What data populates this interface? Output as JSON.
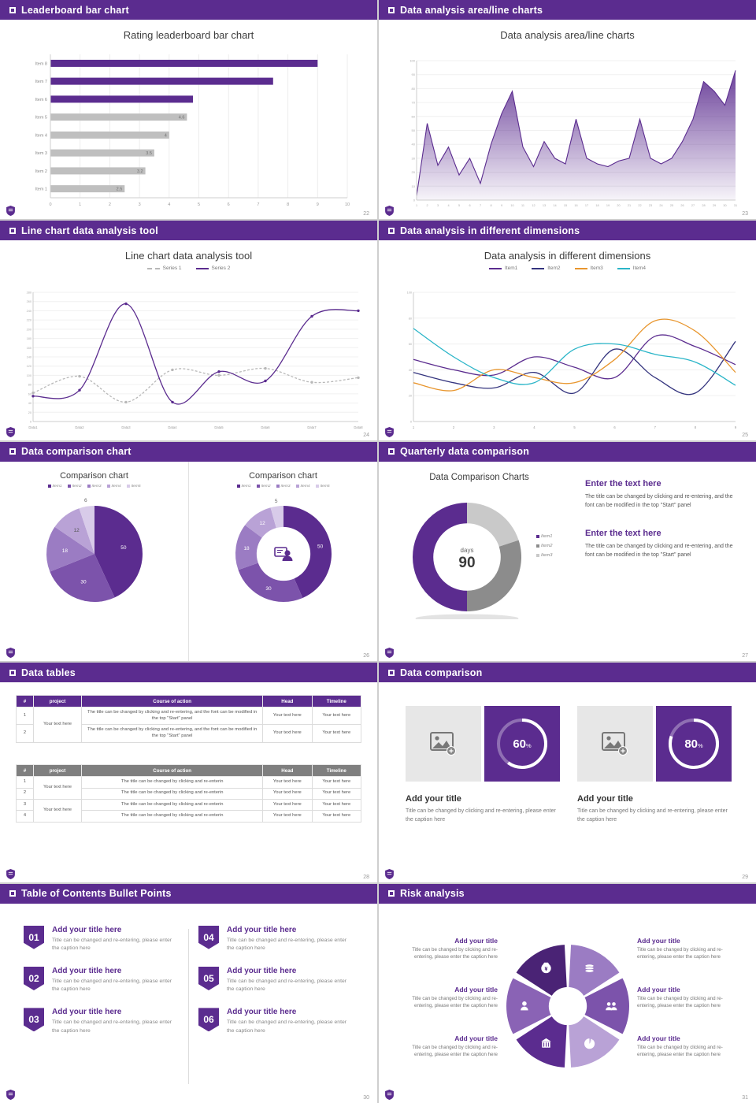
{
  "theme": {
    "purple": "#5b2c8f",
    "purple_mid": "#7c53ab",
    "purple_light": "#9b7cc3",
    "purple_lighter": "#b9a2d6",
    "purple_pale": "#d8cbe9",
    "gray_bar": "#bfbfbf",
    "gray_mid": "#8c8c8c",
    "gray_light": "#c9c9c9",
    "orange": "#e8962e",
    "teal": "#2ab5c8",
    "navy": "#34347e"
  },
  "slides": [
    {
      "header": "Leaderboard bar chart",
      "page": "22",
      "title": "Rating leaderboard bar chart",
      "chart_data": {
        "type": "barh",
        "title": "Rating leaderboard bar chart",
        "xlim": [
          0,
          10
        ],
        "xticks": [
          0,
          1,
          2,
          3,
          4,
          5,
          6,
          7,
          8,
          9,
          10
        ],
        "items": [
          {
            "label": "Item 1",
            "value": 2.5,
            "color": "#bfbfbf",
            "value_label": "2.5"
          },
          {
            "label": "Item 2",
            "value": 3.2,
            "color": "#bfbfbf",
            "value_label": "3.2"
          },
          {
            "label": "Item 3",
            "value": 3.5,
            "color": "#bfbfbf",
            "value_label": "3.5"
          },
          {
            "label": "Item 4",
            "value": 4.0,
            "color": "#bfbfbf",
            "value_label": "4"
          },
          {
            "label": "Item 5",
            "value": 4.6,
            "color": "#bfbfbf",
            "value_label": "4.6"
          },
          {
            "label": "Item 6",
            "value": 4.8,
            "color": "#5b2c8f",
            "value_label": ""
          },
          {
            "label": "Item 7",
            "value": 7.5,
            "color": "#5b2c8f",
            "value_label": ""
          },
          {
            "label": "Item 8",
            "value": 9.0,
            "color": "#5b2c8f",
            "value_label": ""
          }
        ]
      }
    },
    {
      "header": "Data analysis area/line charts",
      "page": "23",
      "title": "Data analysis area/line charts",
      "chart_data": {
        "type": "area",
        "color": "#5b2c8f",
        "ylim": [
          0,
          100
        ],
        "ystep": 10,
        "x": [
          1,
          2,
          3,
          4,
          5,
          6,
          7,
          8,
          9,
          10,
          11,
          12,
          13,
          14,
          15,
          16,
          17,
          18,
          19,
          20,
          21,
          22,
          23,
          24,
          25,
          26,
          27,
          28,
          29,
          30,
          31
        ],
        "values": [
          3,
          55,
          25,
          38,
          18,
          30,
          12,
          40,
          62,
          78,
          38,
          24,
          42,
          30,
          26,
          58,
          30,
          26,
          24,
          28,
          30,
          58,
          30,
          26,
          30,
          42,
          58,
          85,
          78,
          68,
          93
        ]
      }
    },
    {
      "header": "Line chart data analysis tool",
      "page": "24",
      "title": "Line chart data analysis tool",
      "chart_data": {
        "type": "line",
        "xlabels": [
          "Data1",
          "Data2",
          "Data3",
          "Data4",
          "Data5",
          "Data6",
          "Data7",
          "Data8"
        ],
        "ylim": [
          0,
          280
        ],
        "ystep": 20,
        "series": [
          {
            "name": "Series 1",
            "color": "#b8b8b8",
            "dash": true,
            "marker": true,
            "values": [
              62,
              98,
              42,
              112,
              100,
              115,
              85,
              95
            ]
          },
          {
            "name": "Series 2",
            "color": "#5b2c8f",
            "dash": false,
            "marker": true,
            "values": [
              55,
              68,
              255,
              42,
              108,
              88,
              228,
              240
            ]
          }
        ]
      }
    },
    {
      "header": "Data analysis in different dimensions",
      "page": "25",
      "title": "Data analysis in different dimensions",
      "chart_data": {
        "type": "line",
        "xlabels": [
          1,
          2,
          3,
          4,
          5,
          6,
          7,
          8,
          9
        ],
        "ylim": [
          0,
          100
        ],
        "ystep": 20,
        "series": [
          {
            "name": "Item1",
            "color": "#5b2c8f",
            "dash": false,
            "marker": false,
            "values": [
              48,
              40,
              36,
              50,
              42,
              34,
              66,
              58,
              44
            ]
          },
          {
            "name": "Item2",
            "color": "#34347e",
            "dash": false,
            "marker": false,
            "values": [
              38,
              30,
              26,
              38,
              22,
              56,
              34,
              22,
              62
            ]
          },
          {
            "name": "Item3",
            "color": "#e8962e",
            "dash": false,
            "marker": false,
            "values": [
              30,
              24,
              40,
              34,
              30,
              48,
              78,
              70,
              38
            ]
          },
          {
            "name": "Item4",
            "color": "#2ab5c8",
            "dash": false,
            "marker": false,
            "values": [
              72,
              50,
              34,
              30,
              56,
              60,
              52,
              46,
              28
            ]
          }
        ]
      }
    },
    {
      "header": "Data comparison chart",
      "page": "26",
      "panels": [
        {
          "title": "Comparison chart",
          "legend": [
            "Item1",
            "Item2",
            "Item3",
            "Item4",
            "Item5"
          ],
          "chart_data": {
            "type": "pie",
            "values": [
              50,
              30,
              18,
              12,
              6
            ],
            "labels": [
              "50",
              "30",
              "18",
              "12",
              "6"
            ],
            "colors": [
              "#5b2c8f",
              "#7c53ab",
              "#9b7cc3",
              "#b9a2d6",
              "#d8cbe9"
            ],
            "label_colors": [
              "#ffffff",
              "#ffffff",
              "#ffffff",
              "#555555",
              "#555555"
            ]
          }
        },
        {
          "title": "Comparison chart",
          "legend": [
            "Item1",
            "Item2",
            "Item3",
            "Item4",
            "Item5"
          ],
          "chart_data": {
            "type": "donut",
            "hole": 0.56,
            "center_icon": "presenter",
            "values": [
              50,
              30,
              18,
              12,
              5
            ],
            "labels": [
              "50",
              "30",
              "18",
              "12",
              "5"
            ],
            "colors": [
              "#5b2c8f",
              "#7c53ab",
              "#9b7cc3",
              "#b9a2d6",
              "#d8cbe9"
            ],
            "label_colors": [
              "#ffffff",
              "#ffffff",
              "#ffffff",
              "#ffffff",
              "#555555"
            ]
          }
        }
      ]
    },
    {
      "header": "Quarterly data comparison",
      "page": "27",
      "title": "Data Comparison Charts",
      "chart_data": {
        "type": "donut",
        "hole": 0.62,
        "shadow": true,
        "center_label": "days",
        "center_value": "90",
        "slices": [
          {
            "name": "Item3",
            "value": 20,
            "color": "#c9c9c9"
          },
          {
            "name": "Item2",
            "value": 30,
            "color": "#8c8c8c"
          },
          {
            "name": "Item1",
            "value": 50,
            "color": "#5b2c8f"
          }
        ]
      },
      "legend": [
        "Item1",
        "Item2",
        "Item3"
      ],
      "legend_colors": [
        "#5b2c8f",
        "#8c8c8c",
        "#c9c9c9"
      ],
      "blocks": [
        {
          "heading": "Enter the text here",
          "body": "The title can be changed by clicking and re-entering, and the font can be modified in the top \"Start\" panel"
        },
        {
          "heading": "Enter the text here",
          "body": "The title can be changed by clicking and re-entering, and the font can be modified in the top \"Start\" panel"
        }
      ]
    },
    {
      "header": "Data tables",
      "page": "28",
      "table1": {
        "header_bg": "#5b2c8f",
        "headers": [
          "#",
          "project",
          "Course of action",
          "Head",
          "Timeline"
        ],
        "groups": [
          {
            "project": "Your text here",
            "rows": [
              {
                "num": "1",
                "course": "The title can be changed by clicking and re-entering, and the font can be modified in the top \"Start\" panel",
                "head": "Your text here",
                "timeline": "Your text here"
              },
              {
                "num": "2",
                "course": "The title can be changed by clicking and re-entering, and the font can be modified in the top \"Start\" panel",
                "head": "Your text here",
                "timeline": "Your text here"
              }
            ]
          }
        ]
      },
      "table2": {
        "header_bg": "#7f7f7f",
        "headers": [
          "#",
          "project",
          "Course of action",
          "Head",
          "Timeline"
        ],
        "groups": [
          {
            "project": "Your text here",
            "rows": [
              {
                "num": "1",
                "course": "The title can be changed by clicking and re-enterin",
                "head": "Your text here",
                "timeline": "Your text here"
              },
              {
                "num": "2",
                "course": "The title can be changed by clicking and re-enterin",
                "head": "Your text here",
                "timeline": "Your text here"
              }
            ]
          },
          {
            "project": "Your text here",
            "rows": [
              {
                "num": "3",
                "course": "The title can be changed by clicking and re-enterin",
                "head": "Your text here",
                "timeline": "Your text here"
              },
              {
                "num": "4",
                "course": "The title can be changed by clicking and re-enterin",
                "head": "Your text here",
                "timeline": "Your text here"
              }
            ]
          }
        ]
      }
    },
    {
      "header": "Data comparison",
      "page": "29",
      "cards": [
        {
          "percent": 60,
          "title": "Add your title",
          "caption": "Title can be changed by clicking and re-entering, please enter the caption here"
        },
        {
          "percent": 80,
          "title": "Add your title",
          "caption": "Title can be changed by clicking and re-entering, please enter the caption here"
        }
      ]
    },
    {
      "header": "Table of Contents Bullet Points",
      "page": "30",
      "items": [
        {
          "num": "01",
          "title": "Add your title here",
          "caption": "Title can be changed and re-entering, please enter the caption here"
        },
        {
          "num": "02",
          "title": "Add your title here",
          "caption": "Title can be changed and re-entering, please enter the caption here"
        },
        {
          "num": "03",
          "title": "Add your title here",
          "caption": "Title can be changed and re-entering, please enter the caption here"
        },
        {
          "num": "04",
          "title": "Add your title here",
          "caption": "Title can be changed and re-entering, please enter the caption here"
        },
        {
          "num": "05",
          "title": "Add your title here",
          "caption": "Title can be changed and re-entering, please enter the caption here"
        },
        {
          "num": "06",
          "title": "Add your title here",
          "caption": "Title can be changed and re-entering, please enter the caption here"
        }
      ]
    },
    {
      "header": "Risk analysis",
      "page": "31",
      "wheel": {
        "segments": [
          {
            "icon": "coins",
            "color": "#9b7cc3"
          },
          {
            "icon": "people",
            "color": "#7c53ab"
          },
          {
            "icon": "pie",
            "color": "#b9a2d6"
          },
          {
            "icon": "building",
            "color": "#5b2c8f"
          },
          {
            "icon": "person",
            "color": "#8a63b5"
          },
          {
            "icon": "money-bag",
            "color": "#4a2375"
          }
        ]
      },
      "blocks": [
        {
          "title": "Add your title",
          "caption": "Title can be changed by clicking and re-entering, please enter the caption here"
        },
        {
          "title": "Add your title",
          "caption": "Title can be changed by clicking and re-entering, please enter the caption here"
        },
        {
          "title": "Add your title",
          "caption": "Title can be changed by clicking and re-entering, please enter the caption here"
        },
        {
          "title": "Add your title",
          "caption": "Title can be changed by clicking and re-entering, please enter the caption here"
        },
        {
          "title": "Add your title",
          "caption": "Title can be changed by clicking and re-entering, please enter the caption here"
        },
        {
          "title": "Add your title",
          "caption": "Title can be changed by clicking and re-entering, please enter the caption here"
        }
      ]
    }
  ]
}
